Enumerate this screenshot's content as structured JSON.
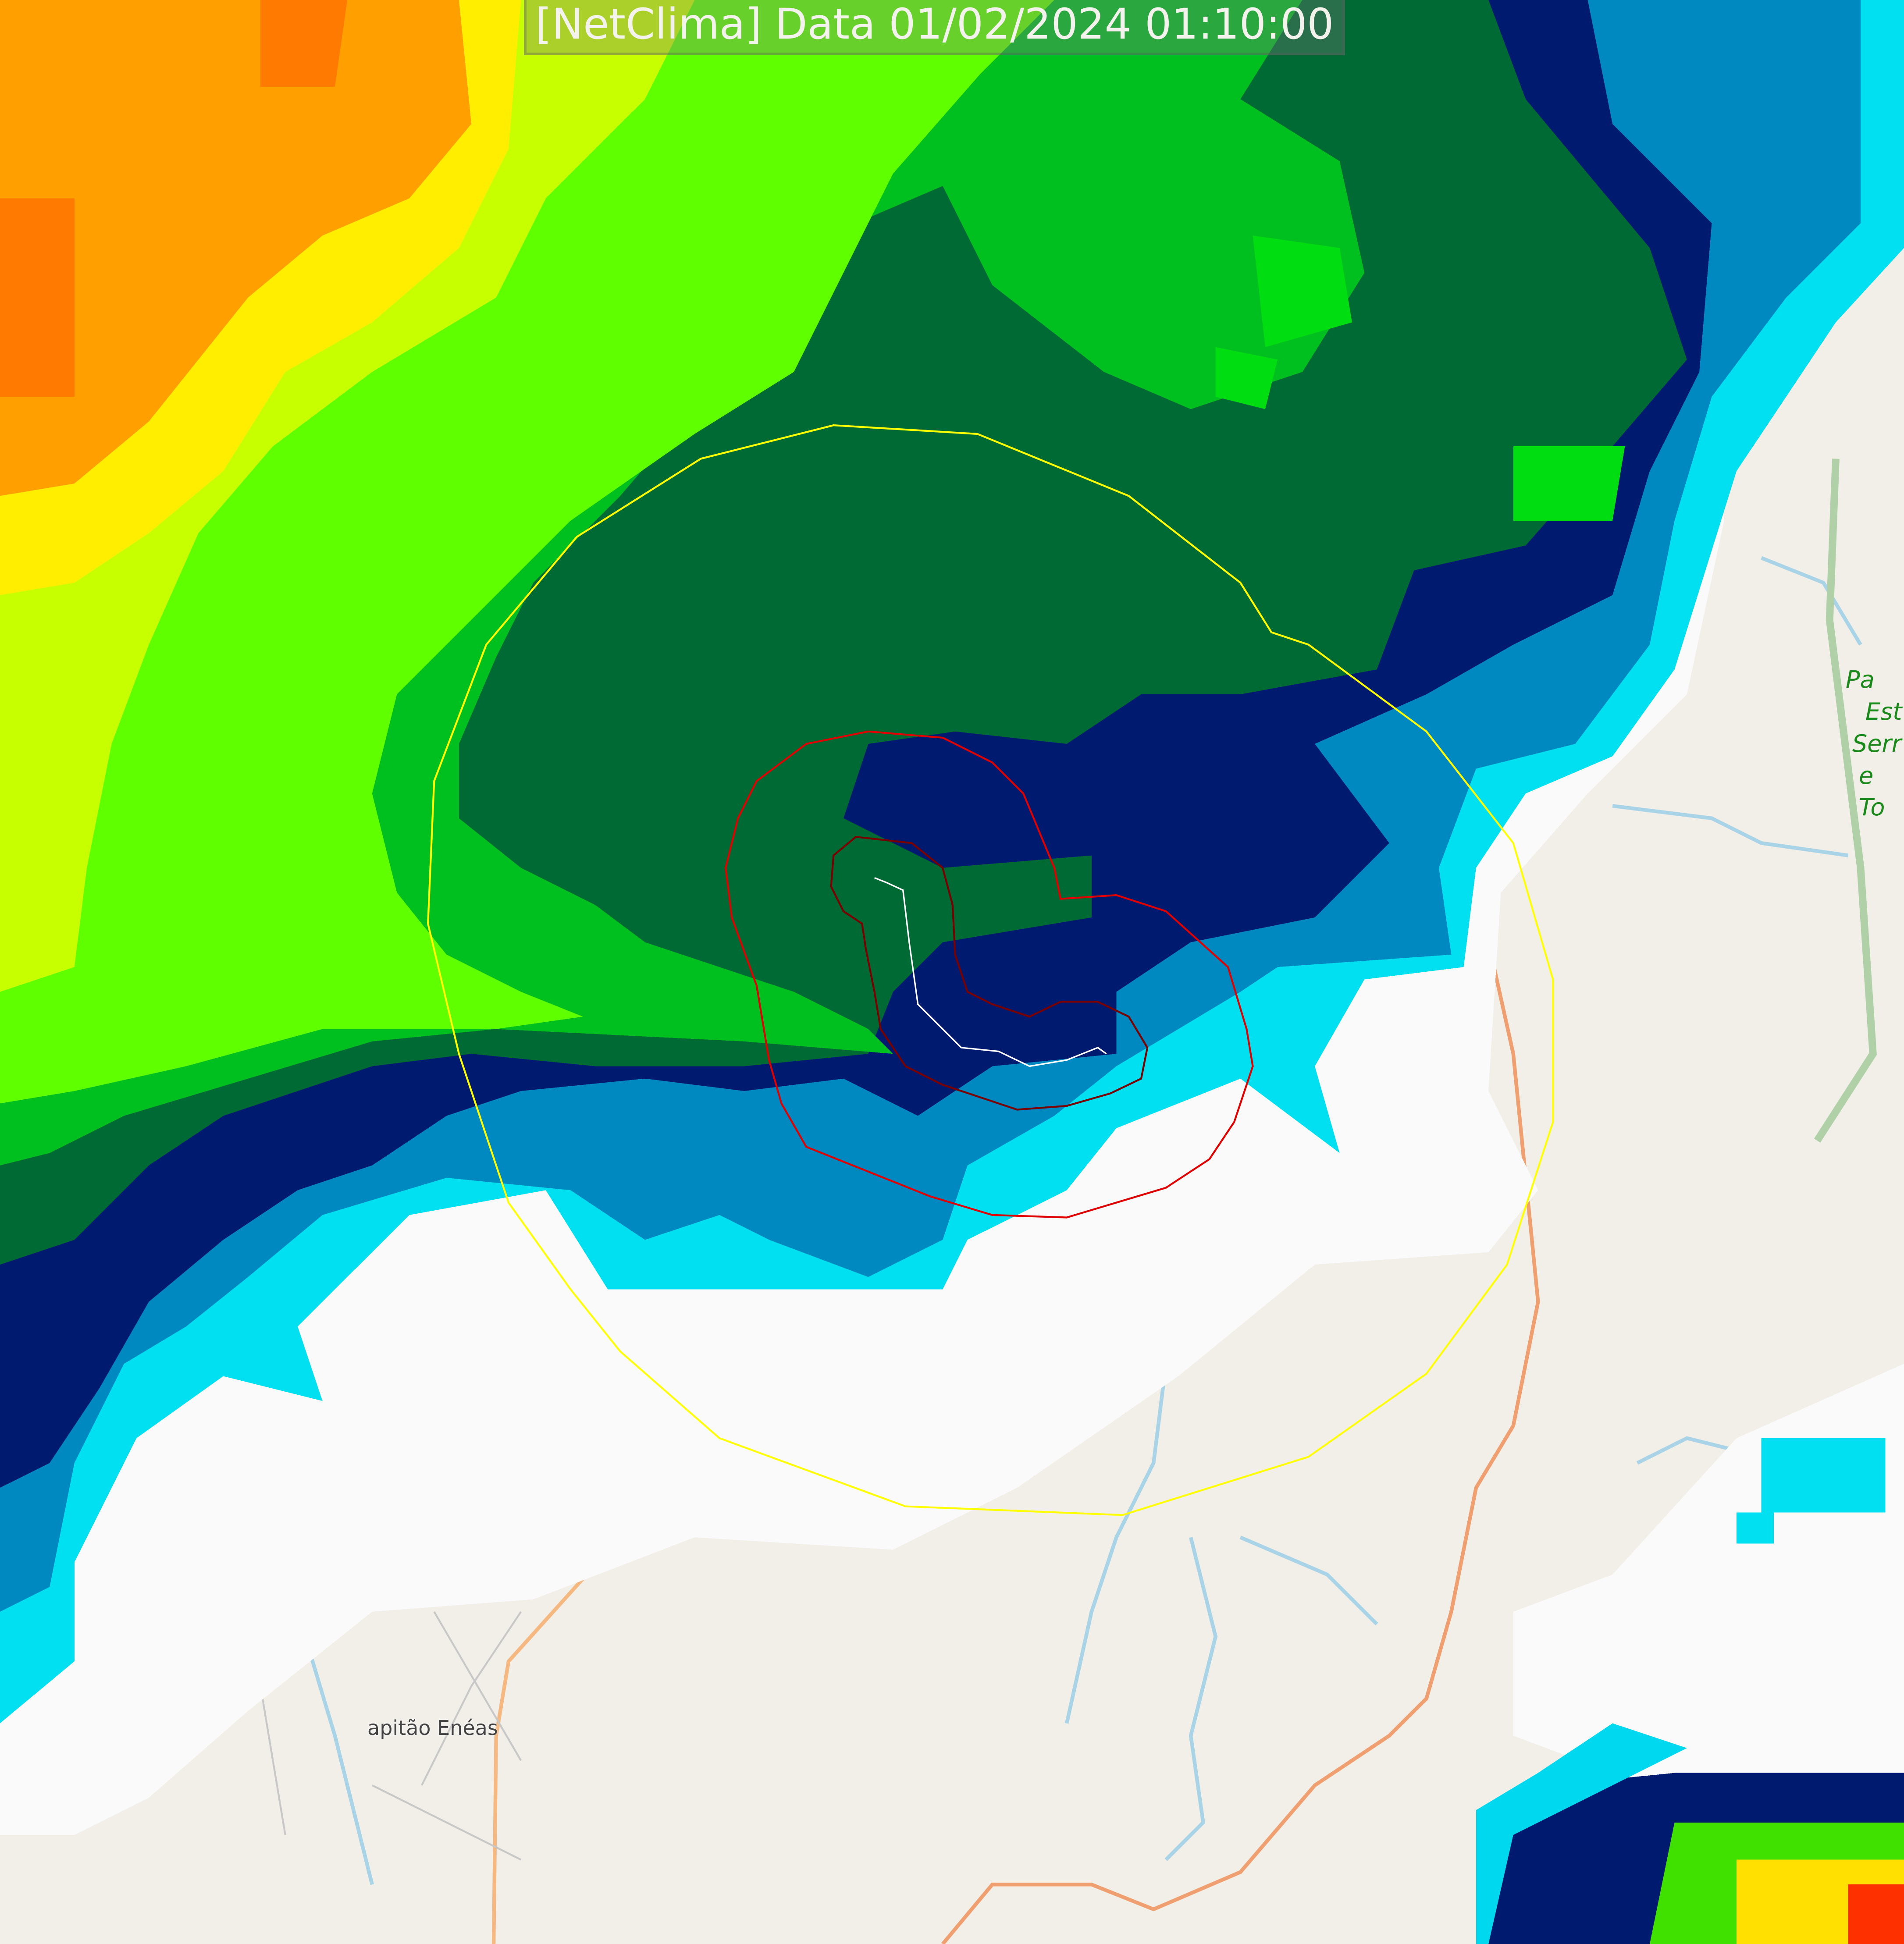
{
  "title": "[NetClima] Data 01/02/2024 01:10:00",
  "map": {
    "town_label": "apitão Enéas",
    "park_label_lines": [
      "Pa",
      "Est",
      "Serr",
      "e To"
    ]
  },
  "layers": {
    "radar_range_ring_color": "#ffff00",
    "storm_contour_color": "#e00000",
    "inner_contour_color": "#7a0000",
    "track_color": "#ffffff"
  },
  "radar_palette": [
    "#ff8000",
    "#ffff00",
    "#80ff00",
    "#00e000",
    "#008a30",
    "#004050",
    "#000070",
    "#0050a0",
    "#0090c8",
    "#00ffff",
    "#ffffff"
  ]
}
